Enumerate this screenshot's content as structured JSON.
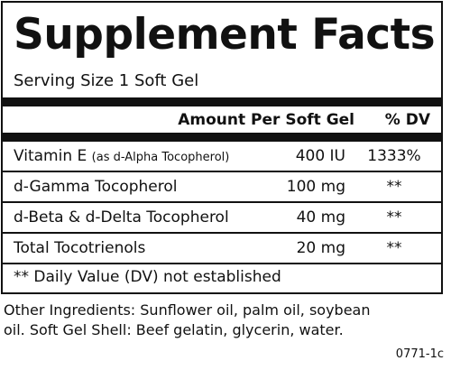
{
  "label": {
    "title": "Supplement Facts",
    "serving_size": "Serving Size 1 Soft Gel",
    "header_amount": "Amount Per Soft Gel",
    "header_dv": "% DV",
    "rows": [
      {
        "name": "Vitamin E",
        "subname": "(as d-Alpha Tocopherol)",
        "amount": "400 IU",
        "dv": "1333%"
      },
      {
        "name": "d-Gamma Tocopherol",
        "subname": "",
        "amount": "100 mg",
        "dv": "**"
      },
      {
        "name": "d-Beta & d-Delta Tocopherol",
        "subname": "",
        "amount": "40 mg",
        "dv": "**"
      },
      {
        "name": "Total Tocotrienols",
        "subname": "",
        "amount": "20 mg",
        "dv": "**"
      }
    ],
    "footnote": "** Daily Value (DV) not established"
  },
  "ingredients": {
    "line1": "Other Ingredients: Sunflower oil, palm oil, soybean",
    "line2": "oil. Soft Gel Shell: Beef gelatin, glycerin, water."
  },
  "product_code": "0771-1c"
}
